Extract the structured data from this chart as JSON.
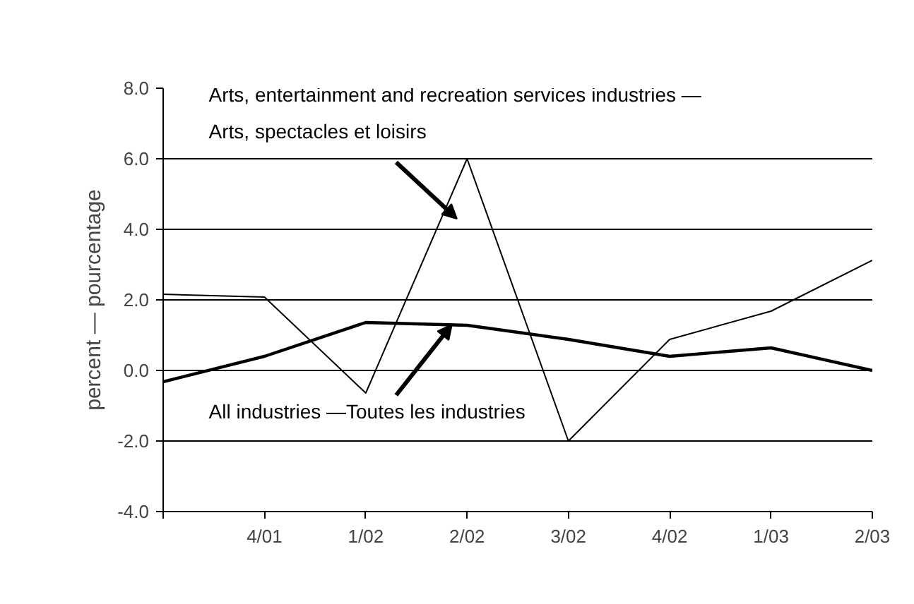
{
  "chart_data": {
    "type": "line",
    "ylabel": "percent — pourcentage",
    "categories": [
      null,
      "4/01",
      "1/02",
      "2/02",
      "3/02",
      "4/02",
      "1/03",
      "2/03"
    ],
    "series": [
      {
        "name": "Arts, entertainment and recreation services industries —\nArts, spectacles et loisirs",
        "color": "#000000",
        "values": [
          2.16,
          2.08,
          -0.64,
          6.0,
          -2.0,
          0.88,
          1.68,
          3.12
        ]
      },
      {
        "name": "All industries —Toutes les industries",
        "color": "#000000",
        "values": [
          -0.32,
          0.4,
          1.36,
          1.28,
          0.88,
          0.4,
          0.64,
          0.0
        ]
      }
    ],
    "ylim": [
      -4.0,
      8.0
    ],
    "yticks": [
      {
        "value": -4,
        "label": "-4.0"
      },
      {
        "value": -2,
        "label": "-2.0"
      },
      {
        "value": 0,
        "label": "0.0"
      },
      {
        "value": 2,
        "label": "2.0"
      },
      {
        "value": 4,
        "label": "4.0"
      },
      {
        "value": 6,
        "label": "6.0"
      },
      {
        "value": 8,
        "label": "8.0"
      }
    ],
    "grid": "y",
    "legend": false,
    "marker": "none",
    "line_style": "solid"
  }
}
